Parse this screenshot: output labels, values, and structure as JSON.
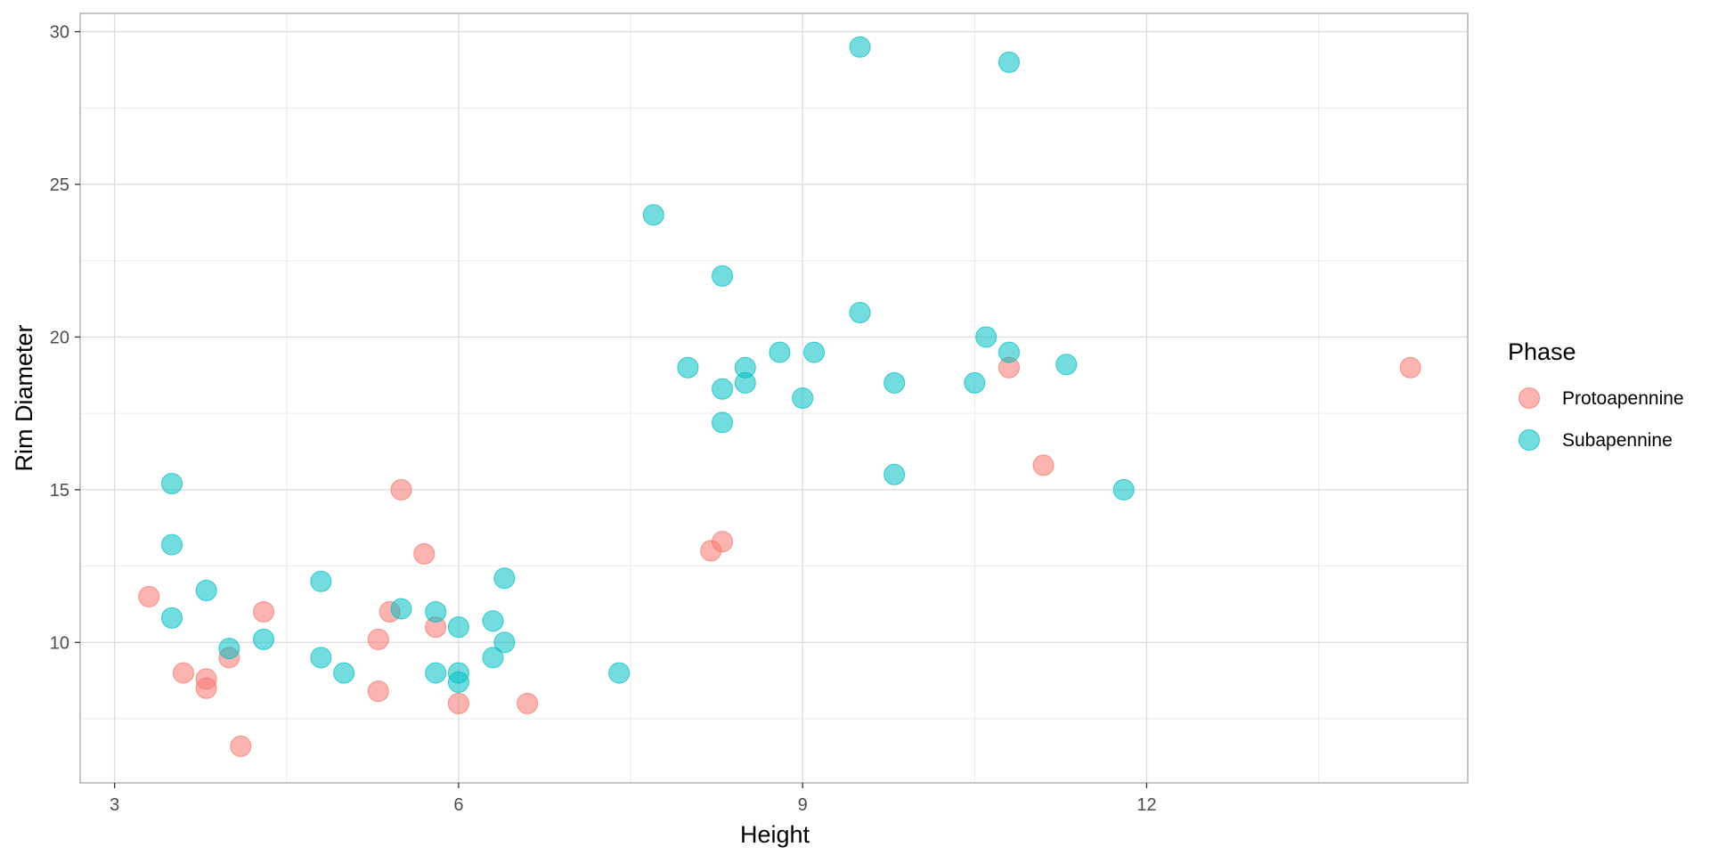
{
  "chart_data": {
    "type": "scatter",
    "title": "",
    "xlabel": "Height",
    "ylabel": "Rim Diameter",
    "xlim": [
      2.7,
      14.8
    ],
    "ylim": [
      5.4,
      30.6
    ],
    "x_ticks": [
      3,
      6,
      9,
      12
    ],
    "x_tick_labels": [
      "3",
      "6",
      "9",
      "12"
    ],
    "y_ticks": [
      10,
      15,
      20,
      25,
      30
    ],
    "y_tick_labels": [
      "10",
      "15",
      "20",
      "25",
      "30"
    ],
    "x_minor_ticks": [
      4.5,
      7.5,
      10.5,
      13.5
    ],
    "y_minor_ticks": [
      7.5,
      12.5,
      17.5,
      22.5,
      27.5
    ],
    "grid": true,
    "legend": {
      "title": "Phase",
      "position": "right"
    },
    "series": [
      {
        "name": "Protoapennine",
        "color": "#F8766D",
        "points": [
          [
            3.3,
            11.5
          ],
          [
            3.6,
            9.0
          ],
          [
            3.8,
            8.8
          ],
          [
            3.8,
            8.5
          ],
          [
            4.0,
            9.5
          ],
          [
            4.1,
            6.6
          ],
          [
            4.3,
            11.0
          ],
          [
            5.3,
            10.1
          ],
          [
            5.3,
            8.4
          ],
          [
            5.4,
            11.0
          ],
          [
            5.5,
            15.0
          ],
          [
            5.7,
            12.9
          ],
          [
            5.8,
            10.5
          ],
          [
            6.0,
            8.0
          ],
          [
            6.6,
            8.0
          ],
          [
            8.2,
            13.0
          ],
          [
            8.3,
            13.3
          ],
          [
            10.8,
            19.0
          ],
          [
            11.1,
            15.8
          ],
          [
            14.3,
            19.0
          ]
        ]
      },
      {
        "name": "Subapennine",
        "color": "#00BFC4",
        "points": [
          [
            3.5,
            15.2
          ],
          [
            3.5,
            13.2
          ],
          [
            3.5,
            10.8
          ],
          [
            3.8,
            11.7
          ],
          [
            4.0,
            9.8
          ],
          [
            4.3,
            10.1
          ],
          [
            4.8,
            12.0
          ],
          [
            4.8,
            9.5
          ],
          [
            5.0,
            9.0
          ],
          [
            5.5,
            11.1
          ],
          [
            5.8,
            11.0
          ],
          [
            5.8,
            9.0
          ],
          [
            6.0,
            10.5
          ],
          [
            6.0,
            9.0
          ],
          [
            6.0,
            8.7
          ],
          [
            6.3,
            10.7
          ],
          [
            6.3,
            9.5
          ],
          [
            6.4,
            12.1
          ],
          [
            6.4,
            10.0
          ],
          [
            7.4,
            9.0
          ],
          [
            7.7,
            24.0
          ],
          [
            8.0,
            19.0
          ],
          [
            8.3,
            22.0
          ],
          [
            8.3,
            18.3
          ],
          [
            8.3,
            17.2
          ],
          [
            8.5,
            19.0
          ],
          [
            8.5,
            18.5
          ],
          [
            8.8,
            19.5
          ],
          [
            9.0,
            18.0
          ],
          [
            9.1,
            19.5
          ],
          [
            9.5,
            29.5
          ],
          [
            9.5,
            20.8
          ],
          [
            9.8,
            18.5
          ],
          [
            9.8,
            15.5
          ],
          [
            10.5,
            18.5
          ],
          [
            10.6,
            20.0
          ],
          [
            10.8,
            29.0
          ],
          [
            10.8,
            19.5
          ],
          [
            11.3,
            19.1
          ],
          [
            11.8,
            15.0
          ]
        ]
      }
    ]
  }
}
